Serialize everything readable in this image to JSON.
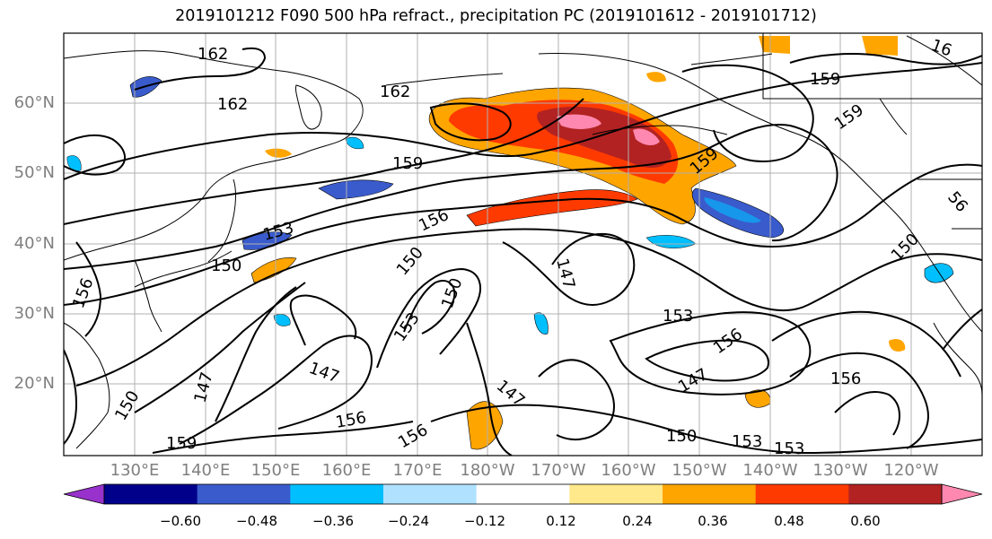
{
  "title": "2019101212 F090 500 hPa refract., precipitation PC (2019101612 - 2019101712)",
  "lat_labels": [
    "60°N",
    "50°N",
    "40°N",
    "30°N",
    "20°N"
  ],
  "lon_labels": [
    "130°E",
    "140°E",
    "150°E",
    "160°E",
    "170°E",
    "180°W",
    "170°W",
    "160°W",
    "150°W",
    "140°W",
    "130°W",
    "120°W"
  ],
  "colorbar": {
    "colors": [
      "#9932cc",
      "#00008b",
      "#3a5bcc",
      "#00bfff",
      "#b0e2ff",
      "#ffffff",
      "#ffe98a",
      "#ffa500",
      "#ff3a00",
      "#b22222",
      "#ff88b0"
    ],
    "ticks": [
      "−0.60",
      "−0.48",
      "−0.36",
      "−0.24",
      "−0.12",
      "0.12",
      "0.24",
      "0.36",
      "0.48",
      "0.60"
    ]
  },
  "contour_labels": [
    "162",
    "162",
    "162",
    "159",
    "159",
    "159",
    "159",
    "159",
    "156",
    "156",
    "156",
    "156",
    "156",
    "156",
    "153",
    "153",
    "153",
    "153",
    "153",
    "150",
    "150",
    "150",
    "150",
    "150",
    "150",
    "147",
    "147",
    "147",
    "147",
    "147",
    "16",
    "56"
  ]
}
